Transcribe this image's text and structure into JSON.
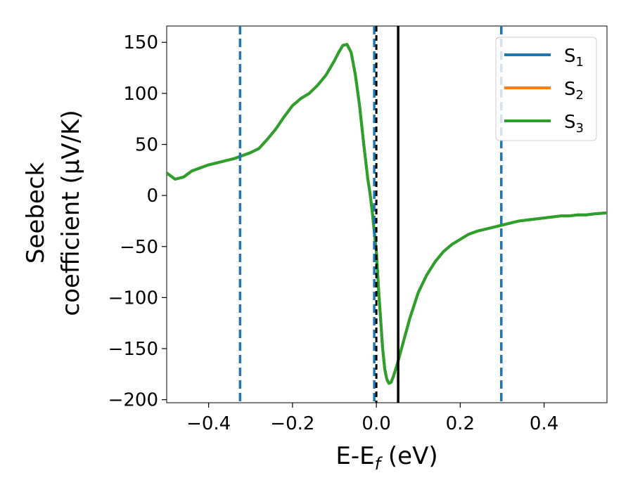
{
  "chart_data": {
    "type": "line",
    "xlabel": "E-E",
    "xlabel_sub": "f",
    "xlabel_unit": " (eV)",
    "ylabel_line1": "Seebeck",
    "ylabel_line2": "coefficient  (μV/K)",
    "xlim": [
      -0.5,
      0.55
    ],
    "ylim": [
      -203,
      166
    ],
    "xticks": [
      -0.4,
      -0.2,
      0.0,
      0.2,
      0.4
    ],
    "xtick_labels": [
      "−0.4",
      "−0.2",
      "0.0",
      "0.2",
      "0.4"
    ],
    "yticks": [
      -200,
      -150,
      -100,
      -50,
      0,
      50,
      100,
      150
    ],
    "ytick_labels": [
      "−200",
      "−150",
      "−100",
      "−50",
      "0",
      "50",
      "100",
      "150"
    ],
    "grid": false,
    "legend_position": "top-right",
    "x": [
      -0.5,
      -0.48,
      -0.46,
      -0.44,
      -0.42,
      -0.4,
      -0.38,
      -0.36,
      -0.34,
      -0.32,
      -0.3,
      -0.28,
      -0.26,
      -0.24,
      -0.22,
      -0.2,
      -0.18,
      -0.16,
      -0.14,
      -0.12,
      -0.1,
      -0.09,
      -0.08,
      -0.07,
      -0.06,
      -0.05,
      -0.04,
      -0.03,
      -0.02,
      -0.015,
      -0.01,
      -0.005,
      0.0,
      0.005,
      0.01,
      0.015,
      0.02,
      0.025,
      0.03,
      0.035,
      0.04,
      0.05,
      0.06,
      0.08,
      0.1,
      0.12,
      0.14,
      0.16,
      0.18,
      0.2,
      0.22,
      0.24,
      0.26,
      0.28,
      0.3,
      0.32,
      0.34,
      0.36,
      0.38,
      0.4,
      0.42,
      0.44,
      0.46,
      0.48,
      0.5,
      0.52,
      0.55
    ],
    "series": [
      {
        "name": "S",
        "sub": "1",
        "color": "#1f77b4",
        "values": [
          22,
          16,
          18,
          24,
          27,
          30,
          32,
          34,
          36,
          39,
          42,
          46,
          55,
          65,
          77,
          88,
          95,
          100,
          108,
          118,
          132,
          140,
          147,
          148,
          140,
          118,
          88,
          50,
          15,
          2,
          -15,
          -35,
          -55,
          -90,
          -120,
          -150,
          -170,
          -180,
          -184,
          -183,
          -178,
          -165,
          -150,
          -120,
          -95,
          -78,
          -65,
          -55,
          -48,
          -43,
          -38,
          -35,
          -33,
          -31,
          -29,
          -27,
          -25,
          -24,
          -23,
          -22,
          -21,
          -20,
          -20,
          -19,
          -19,
          -18,
          -17
        ]
      },
      {
        "name": "S",
        "sub": "2",
        "color": "#ff7f0e",
        "values": [
          22,
          16,
          18,
          24,
          27,
          30,
          32,
          34,
          36,
          39,
          42,
          46,
          55,
          65,
          77,
          88,
          95,
          100,
          108,
          118,
          132,
          140,
          147,
          148,
          140,
          118,
          88,
          50,
          15,
          2,
          -15,
          -35,
          -55,
          -90,
          -120,
          -150,
          -170,
          -180,
          -184,
          -183,
          -178,
          -165,
          -150,
          -120,
          -95,
          -78,
          -65,
          -55,
          -48,
          -43,
          -38,
          -35,
          -33,
          -31,
          -29,
          -27,
          -25,
          -24,
          -23,
          -22,
          -21,
          -20,
          -20,
          -19,
          -19,
          -18,
          -17
        ]
      },
      {
        "name": "S",
        "sub": "3",
        "color": "#2ca02c",
        "values": [
          22,
          16,
          18,
          24,
          27,
          30,
          32,
          34,
          36,
          39,
          42,
          46,
          55,
          65,
          77,
          88,
          95,
          100,
          108,
          118,
          132,
          140,
          147,
          148,
          140,
          118,
          88,
          50,
          15,
          2,
          -15,
          -35,
          -55,
          -90,
          -120,
          -150,
          -170,
          -180,
          -184,
          -183,
          -178,
          -165,
          -150,
          -120,
          -95,
          -78,
          -65,
          -55,
          -48,
          -43,
          -38,
          -35,
          -33,
          -31,
          -29,
          -27,
          -25,
          -24,
          -23,
          -22,
          -21,
          -20,
          -20,
          -19,
          -19,
          -18,
          -17
        ]
      }
    ],
    "vlines_dashed": {
      "color": "#1f77b4",
      "x": [
        -0.325,
        -0.005,
        0.298
      ]
    },
    "vline_black_dashed": {
      "color": "#000000",
      "x": 0.0
    },
    "vline_black_solid": {
      "color": "#000000",
      "x": 0.052
    }
  }
}
